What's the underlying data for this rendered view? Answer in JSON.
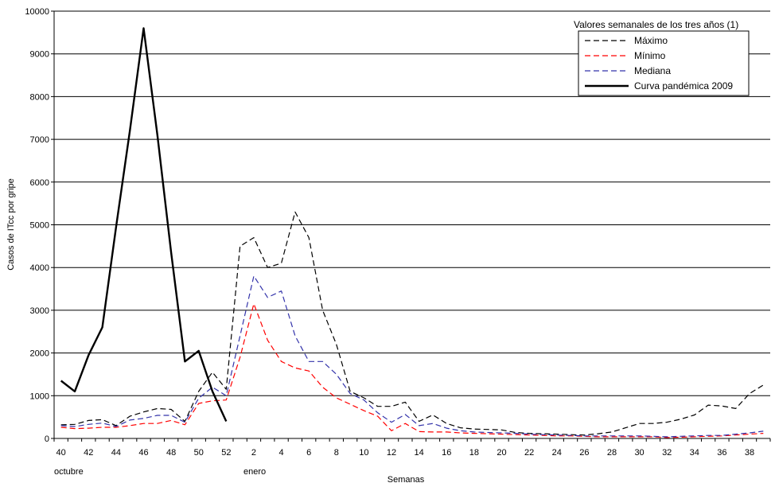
{
  "chart_data": {
    "type": "line",
    "title": "",
    "xlabel": "Semanas",
    "ylabel": "Casos de ITcc por gripe",
    "ylim": [
      0,
      10000
    ],
    "yticks": [
      0,
      1000,
      2000,
      3000,
      4000,
      5000,
      6000,
      7000,
      8000,
      9000,
      10000
    ],
    "grid": "horizontal",
    "legend": {
      "title": "Valores semanales de los tres años (1)",
      "placement": "top-right"
    },
    "period_labels": [
      "octubre",
      "enero"
    ],
    "x": [
      40,
      41,
      42,
      43,
      44,
      45,
      46,
      47,
      48,
      49,
      50,
      51,
      52,
      1,
      2,
      3,
      4,
      5,
      6,
      7,
      8,
      9,
      10,
      11,
      12,
      13,
      14,
      15,
      16,
      17,
      18,
      19,
      20,
      21,
      22,
      23,
      24,
      25,
      26,
      27,
      28,
      29,
      30,
      31,
      32,
      33,
      34,
      35,
      36,
      37,
      38,
      39
    ],
    "x_tick_labels": [
      "40",
      "42",
      "44",
      "46",
      "48",
      "50",
      "52",
      "2",
      "4",
      "6",
      "8",
      "10",
      "12",
      "14",
      "16",
      "18",
      "20",
      "22",
      "24",
      "26",
      "28",
      "30",
      "32",
      "34",
      "36",
      "38"
    ],
    "series": [
      {
        "name": "Máximo",
        "color": "#000000",
        "dash": "dashed",
        "values": [
          320,
          330,
          420,
          440,
          300,
          520,
          620,
          700,
          680,
          400,
          1100,
          1550,
          1150,
          4500,
          4700,
          4000,
          4100,
          5300,
          4700,
          3000,
          2200,
          1100,
          950,
          750,
          750,
          850,
          400,
          550,
          350,
          250,
          220,
          210,
          200,
          140,
          120,
          110,
          100,
          90,
          80,
          110,
          150,
          250,
          350,
          350,
          380,
          450,
          550,
          780,
          760,
          700,
          1050,
          1250
        ]
      },
      {
        "name": "Mínimo",
        "color": "#ff0000",
        "dash": "dashed",
        "values": [
          260,
          230,
          240,
          260,
          260,
          300,
          350,
          350,
          420,
          320,
          820,
          880,
          900,
          1900,
          3150,
          2300,
          1800,
          1650,
          1580,
          1200,
          950,
          800,
          650,
          520,
          180,
          350,
          160,
          150,
          150,
          130,
          120,
          110,
          100,
          90,
          80,
          70,
          60,
          60,
          50,
          40,
          40,
          40,
          40,
          40,
          20,
          30,
          40,
          50,
          60,
          80,
          100,
          120
        ]
      },
      {
        "name": "Mediana",
        "color": "#3333aa",
        "dash": "dashed",
        "values": [
          300,
          280,
          330,
          360,
          280,
          430,
          470,
          540,
          540,
          380,
          940,
          1200,
          1000,
          2400,
          3800,
          3300,
          3450,
          2400,
          1800,
          1800,
          1500,
          1050,
          900,
          600,
          380,
          560,
          300,
          350,
          240,
          180,
          150,
          140,
          130,
          120,
          100,
          90,
          80,
          70,
          60,
          60,
          60,
          60,
          60,
          50,
          40,
          50,
          60,
          70,
          70,
          100,
          130,
          170
        ]
      },
      {
        "name": "Curva pandémica 2009",
        "color": "#000000",
        "dash": "solid",
        "values": [
          1350,
          1100,
          1950,
          2600,
          4950,
          7200,
          9600,
          7100,
          4350,
          1800,
          2050,
          1100,
          400,
          null,
          null,
          null,
          null,
          null,
          null,
          null,
          null,
          null,
          null,
          null,
          null,
          null,
          null,
          null,
          null,
          null,
          null,
          null,
          null,
          null,
          null,
          null,
          null,
          null,
          null,
          null,
          null,
          null,
          null,
          null,
          null,
          null,
          null,
          null,
          null,
          null,
          null,
          null
        ]
      }
    ]
  }
}
